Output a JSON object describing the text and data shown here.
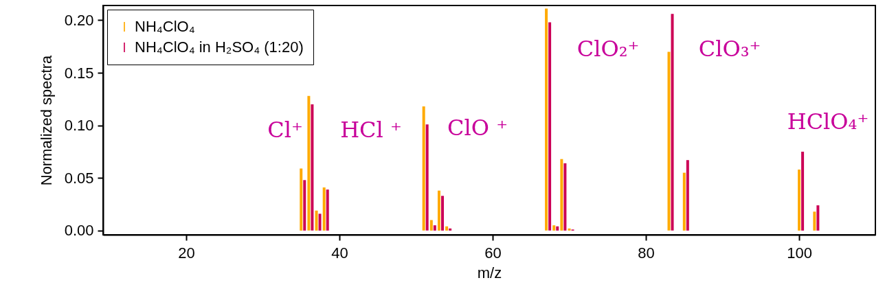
{
  "chart_data": {
    "type": "bar",
    "xlabel": "m/z",
    "ylabel": "Normalized spectra",
    "xlim": [
      9.6,
      109.5
    ],
    "xticks": [
      20,
      40,
      60,
      80,
      100
    ],
    "ylim": [
      -0.004,
      0.214
    ],
    "yticks": [
      {
        "value": 0,
        "label": "0.00"
      },
      {
        "value": 0.05,
        "label": "0.05"
      },
      {
        "value": 0.1,
        "label": "0.10"
      },
      {
        "value": 0.15,
        "label": "0.15"
      },
      {
        "value": 0.2,
        "label": "0.20"
      }
    ],
    "series": [
      {
        "name": "NH₄ClO₄",
        "color": "#ffaa00",
        "x": [
          35,
          36,
          37,
          38,
          51,
          52,
          53,
          54,
          67,
          68,
          69,
          70,
          83,
          85,
          100,
          102
        ],
        "values": [
          0.059,
          0.128,
          0.019,
          0.041,
          0.118,
          0.01,
          0.038,
          0.004,
          0.211,
          0.005,
          0.068,
          0.002,
          0.17,
          0.055,
          0.058,
          0.018
        ]
      },
      {
        "name": "NH₄ClO₄ in H₂SO₄ (1:20)",
        "color": "#cc0055",
        "x": [
          35.45,
          36.45,
          37.45,
          38.45,
          51.45,
          52.45,
          53.45,
          54.45,
          67.45,
          68.45,
          69.45,
          70.45,
          83.45,
          85.45,
          100.45,
          102.45
        ],
        "values": [
          0.048,
          0.12,
          0.016,
          0.039,
          0.101,
          0.005,
          0.033,
          0.002,
          0.198,
          0.004,
          0.064,
          0.001,
          0.206,
          0.067,
          0.075,
          0.024
        ]
      }
    ],
    "annotations": [
      "Cl⁺",
      "HCl ⁺",
      "ClO ⁺",
      "ClO₂⁺",
      "ClO₃⁺",
      "HClO₄⁺"
    ],
    "legend": "top left",
    "grid": false
  }
}
